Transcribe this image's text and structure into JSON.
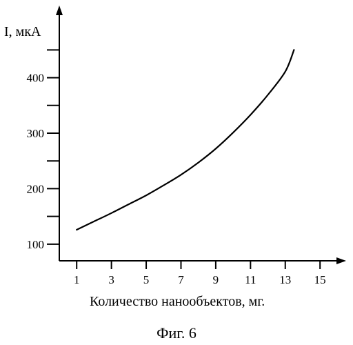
{
  "chart_data": {
    "type": "line",
    "title": "",
    "xlabel": "Количество нанообъектов, мг.",
    "ylabel": "I, мкА",
    "caption": "Фиг. 6",
    "x_ticks": [
      1,
      3,
      5,
      7,
      9,
      11,
      13,
      15
    ],
    "y_ticks": [
      {
        "value": 100,
        "label": "100"
      },
      {
        "value": 150,
        "label": ""
      },
      {
        "value": 200,
        "label": "200"
      },
      {
        "value": 250,
        "label": ""
      },
      {
        "value": 300,
        "label": "300"
      },
      {
        "value": 350,
        "label": ""
      },
      {
        "value": 400,
        "label": "400"
      },
      {
        "value": 450,
        "label": ""
      }
    ],
    "xlim": [
      0,
      16.5
    ],
    "ylim": [
      70,
      530
    ],
    "grid": false,
    "series": [
      {
        "x": [
          1,
          2,
          3,
          4,
          5,
          6,
          7,
          8,
          9,
          10,
          11,
          12,
          13,
          13.5
        ],
        "y": [
          126,
          141,
          156,
          172,
          188,
          206,
          225,
          247,
          272,
          301,
          333,
          369,
          411,
          450
        ]
      }
    ]
  }
}
